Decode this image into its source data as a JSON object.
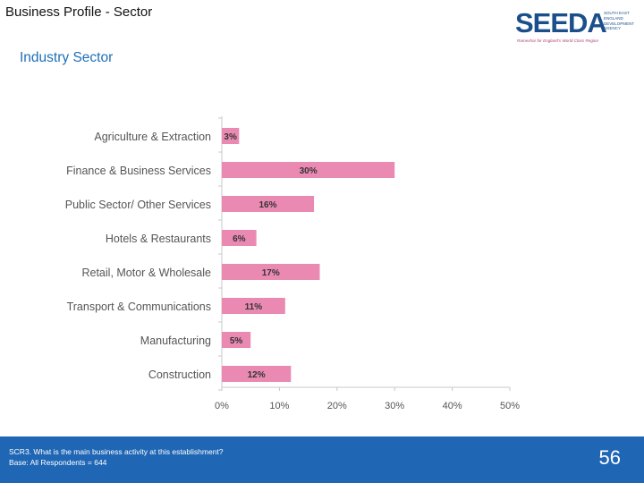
{
  "header": {
    "title": "Business Profile - Sector",
    "subtitle": "Industry Sector"
  },
  "logo": {
    "word": "SEEDA",
    "agency_lines": [
      "SOUTH EAST",
      "ENGLAND",
      "DEVELOPMENT",
      "AGENCY"
    ],
    "tagline": "Rameshar for England's World Class Region"
  },
  "chart_data": {
    "type": "bar",
    "orientation": "horizontal",
    "title": "Industry Sector",
    "categories": [
      "Agriculture & Extraction",
      "Finance & Business Services",
      "Public Sector/ Other Services",
      "Hotels & Restaurants",
      "Retail, Motor & Wholesale",
      "Transport & Communications",
      "Manufacturing",
      "Construction"
    ],
    "values": [
      3,
      30,
      16,
      6,
      17,
      11,
      5,
      12
    ],
    "value_labels": [
      "3%",
      "30%",
      "16%",
      "6%",
      "17%",
      "11%",
      "5%",
      "12%"
    ],
    "xlim": [
      0,
      50
    ],
    "ticks": [
      0,
      10,
      20,
      30,
      40,
      50
    ],
    "tick_labels": [
      "0%",
      "10%",
      "20%",
      "30%",
      "40%",
      "50%"
    ],
    "bar_color": "#ea8ab3",
    "xlabel": "",
    "ylabel": ""
  },
  "footer": {
    "question": "SCR3. What is the main business activity at this establishment?",
    "base": "Base: All Respondents = 644",
    "page_number": "56"
  }
}
